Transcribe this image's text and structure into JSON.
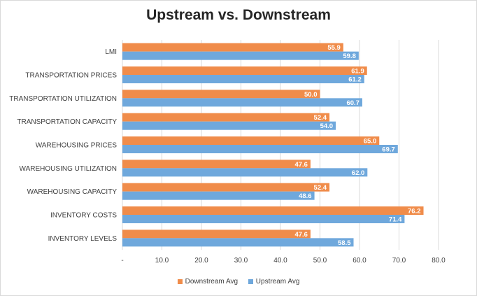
{
  "chart_data": {
    "type": "bar",
    "orientation": "horizontal",
    "title": "Upstream vs. Downstream",
    "categories": [
      "LMI",
      "TRANSPORTATION PRICES",
      "TRANSPORTATION UTILIZATION",
      "TRANSPORTATION CAPACITY",
      "WAREHOUSING PRICES",
      "WAREHOUSING UTILIZATION",
      "WAREHOUSING CAPACITY",
      "INVENTORY COSTS",
      "INVENTORY LEVELS"
    ],
    "series": [
      {
        "name": "Downstream Avg",
        "color": "#f08c4a",
        "values": [
          55.9,
          61.9,
          50.0,
          52.4,
          65.0,
          47.6,
          52.4,
          76.2,
          47.6
        ],
        "labels": [
          "55.9",
          "61.9",
          "50.0",
          "52.4",
          "65.0",
          "47.6",
          "52.4",
          "76.2",
          "47.6"
        ]
      },
      {
        "name": "Upstream Avg",
        "color": "#6fa8dc",
        "values": [
          59.8,
          61.2,
          60.7,
          54.0,
          69.7,
          62.0,
          48.6,
          71.4,
          58.5
        ],
        "labels": [
          "59.8",
          "61.2",
          "60.7",
          "54.0",
          "69.7",
          "62.0",
          "48.6",
          "71.4",
          "58.5"
        ]
      }
    ],
    "xlim": [
      0,
      80
    ],
    "xticks": [
      "-",
      "10.0",
      "20.0",
      "30.0",
      "40.0",
      "50.0",
      "60.0",
      "70.0",
      "80.0"
    ],
    "grid": true,
    "legend": "bottom"
  },
  "legend": {
    "downstream_label": "Downstream Avg",
    "upstream_label": "Upstream Avg"
  }
}
